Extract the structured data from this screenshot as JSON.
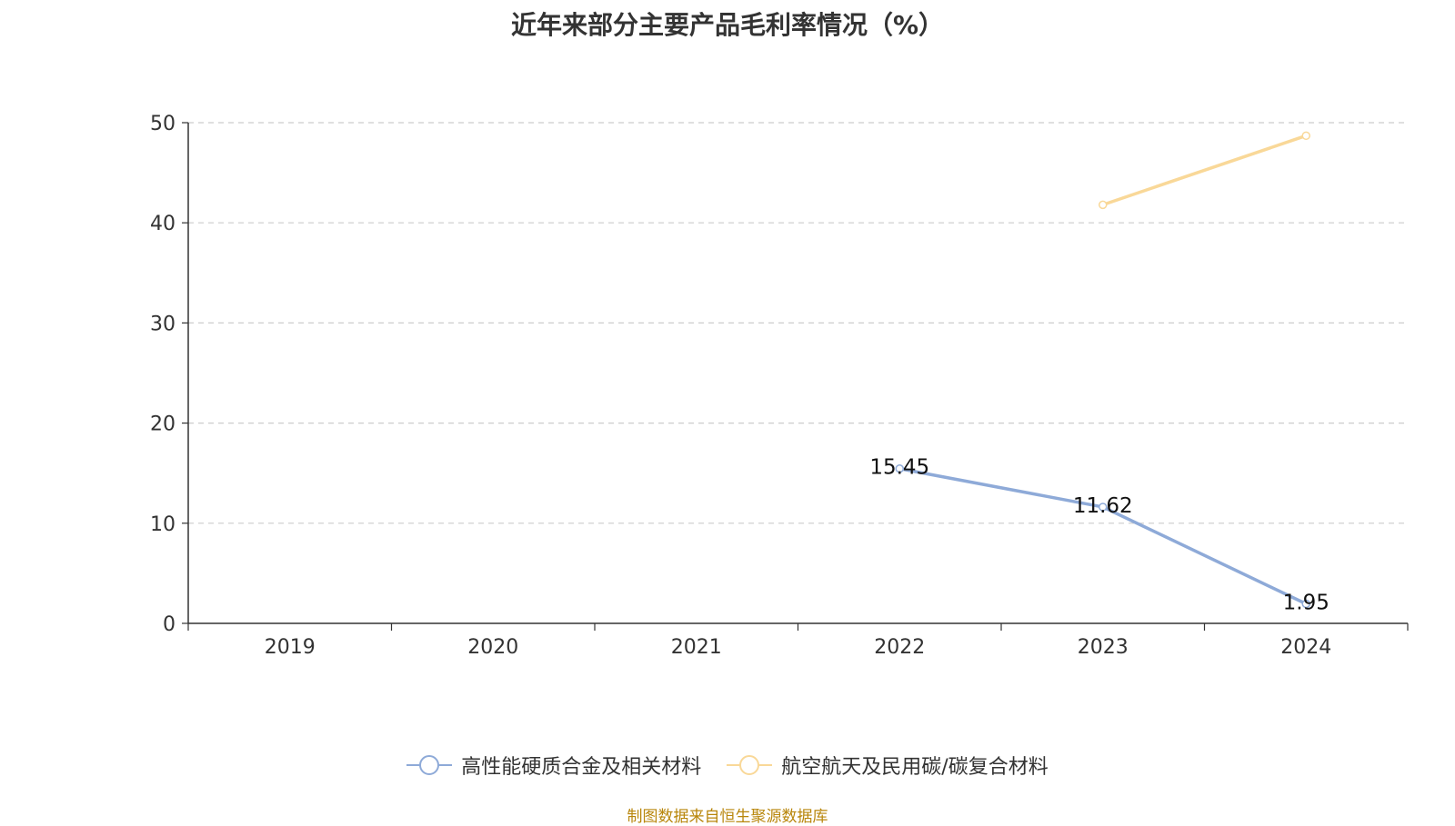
{
  "chart_data": {
    "type": "line",
    "title": "近年来部分主要产品毛利率情况（%）",
    "categories": [
      "2019",
      "2020",
      "2021",
      "2022",
      "2023",
      "2024"
    ],
    "ylim": [
      0,
      50
    ],
    "yticks": [
      0,
      10,
      20,
      30,
      40,
      50
    ],
    "grid": true,
    "legend_position": "bottom",
    "series": [
      {
        "name": "高性能硬质合金及相关材料",
        "color": "#8eaad8",
        "values": [
          null,
          null,
          null,
          15.45,
          11.62,
          1.95
        ],
        "labels": [
          "",
          "",
          "",
          "15.45",
          "11.62",
          "1.95"
        ]
      },
      {
        "name": "航空航天及民用碳/碳复合材料",
        "color": "#f9d898",
        "values": [
          null,
          null,
          null,
          null,
          41.8,
          48.7
        ],
        "labels": [
          "",
          "",
          "",
          "",
          "",
          ""
        ]
      }
    ]
  },
  "source": "制图数据来自恒生聚源数据库"
}
